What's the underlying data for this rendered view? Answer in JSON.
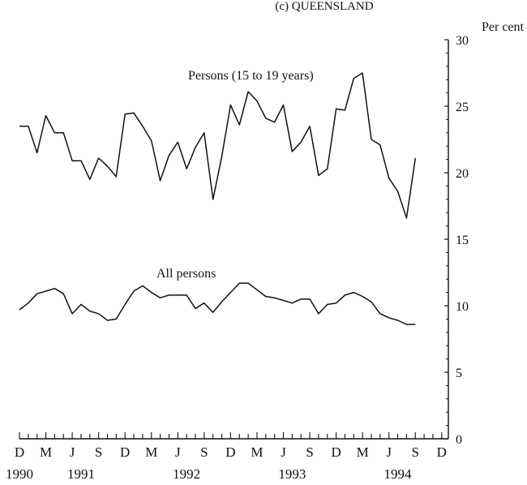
{
  "chart_data": {
    "type": "line",
    "title": "(c) QUEENSLAND",
    "ylabel": "Per cent",
    "ylim": [
      0,
      30
    ],
    "yticks": [
      "0",
      "5",
      "10",
      "15",
      "20",
      "25",
      "30"
    ],
    "month_tick_labels": [
      "D",
      "M",
      "J",
      "S",
      "D",
      "M",
      "J",
      "S",
      "D",
      "M",
      "J",
      "S",
      "D",
      "M",
      "J",
      "S",
      "D"
    ],
    "year_labels": [
      "1990",
      "1991",
      "1992",
      "1993",
      "1994"
    ],
    "x": [
      "Dec 1990",
      "Jan 1991",
      "Feb 1991",
      "Mar 1991",
      "Apr 1991",
      "May 1991",
      "Jun 1991",
      "Jul 1991",
      "Aug 1991",
      "Sep 1991",
      "Oct 1991",
      "Nov 1991",
      "Dec 1991",
      "Jan 1992",
      "Feb 1992",
      "Mar 1992",
      "Apr 1992",
      "May 1992",
      "Jun 1992",
      "Jul 1992",
      "Aug 1992",
      "Sep 1992",
      "Oct 1992",
      "Nov 1992",
      "Dec 1992",
      "Jan 1993",
      "Feb 1993",
      "Mar 1993",
      "Apr 1993",
      "May 1993",
      "Jun 1993",
      "Jul 1993",
      "Aug 1993",
      "Sep 1993",
      "Oct 1993",
      "Nov 1993",
      "Dec 1993",
      "Jan 1994",
      "Feb 1994",
      "Mar 1994",
      "Apr 1994",
      "May 1994",
      "Jun 1994",
      "Jul 1994",
      "Aug 1994",
      "Sep 1994"
    ],
    "series": [
      {
        "name": "Persons (15 to 19 years)",
        "label": "Persons (15 to 19 years)",
        "values": [
          23.5,
          23.5,
          21.5,
          24.3,
          23.0,
          23.0,
          20.9,
          20.9,
          19.5,
          21.1,
          20.5,
          19.7,
          24.4,
          24.5,
          23.5,
          22.4,
          19.4,
          21.3,
          22.3,
          20.3,
          21.9,
          23.0,
          18.0,
          21.2,
          25.1,
          23.6,
          26.1,
          25.4,
          24.1,
          23.8,
          25.1,
          21.6,
          22.3,
          23.5,
          19.8,
          20.3,
          24.8,
          24.7,
          27.1,
          27.5,
          22.5,
          22.1,
          19.6,
          18.6,
          16.6,
          21.1
        ]
      },
      {
        "name": "All persons",
        "label": "All persons",
        "values": [
          9.7,
          10.2,
          10.9,
          11.1,
          11.3,
          10.9,
          9.4,
          10.1,
          9.6,
          9.4,
          8.9,
          9.0,
          10.1,
          11.1,
          11.5,
          11.0,
          10.6,
          10.8,
          10.8,
          10.8,
          9.8,
          10.2,
          9.5,
          10.3,
          11.0,
          11.7,
          11.7,
          11.2,
          10.7,
          10.6,
          10.4,
          10.2,
          10.5,
          10.5,
          9.4,
          10.1,
          10.2,
          10.8,
          11.0,
          10.7,
          10.3,
          9.4,
          9.1,
          8.9,
          8.6,
          8.6
        ]
      }
    ],
    "grid": false,
    "legend": "none (direct series labels)"
  },
  "colors": {
    "line": "#111111",
    "background": "#ffffff"
  }
}
